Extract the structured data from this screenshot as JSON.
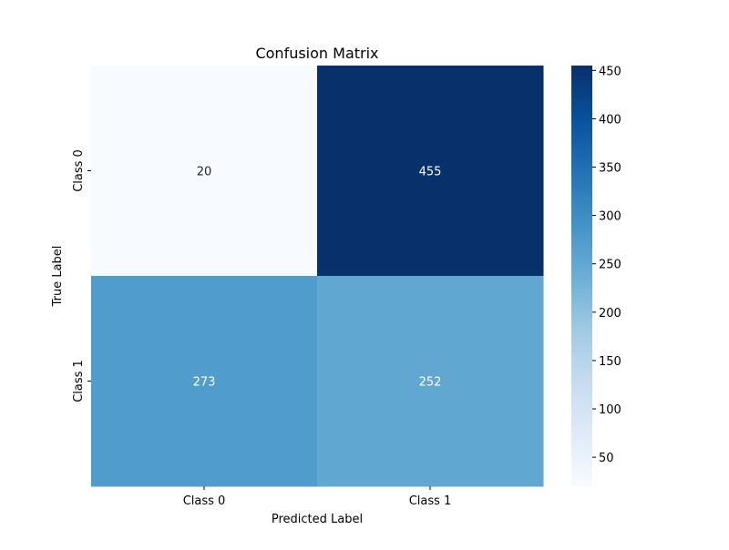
{
  "chart_data": {
    "type": "heatmap",
    "title": "Confusion Matrix",
    "xlabel": "Predicted Label",
    "ylabel": "True Label",
    "x_categories": [
      "Class 0",
      "Class 1"
    ],
    "y_categories": [
      "Class 0",
      "Class 1"
    ],
    "values": [
      [
        20,
        455
      ],
      [
        273,
        252
      ]
    ],
    "colormap": "Blues",
    "colorbar": {
      "ticks": [
        50,
        100,
        150,
        200,
        250,
        300,
        350,
        400,
        450
      ],
      "min": 20,
      "max": 455
    },
    "grid": false
  }
}
